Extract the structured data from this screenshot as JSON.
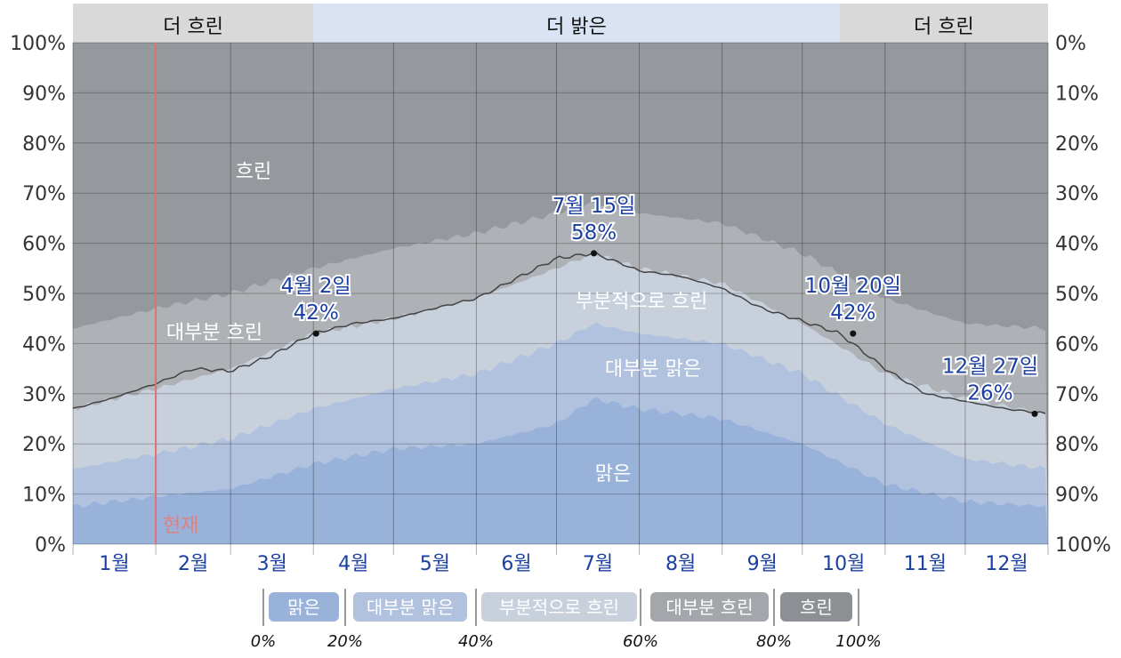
{
  "chart_data": {
    "type": "area",
    "x_unit": "day_of_year",
    "months": [
      "1월",
      "2월",
      "3월",
      "4월",
      "5월",
      "6월",
      "7월",
      "8월",
      "9월",
      "10월",
      "11월",
      "12월"
    ],
    "y_left_ticks": [
      "0%",
      "10%",
      "20%",
      "30%",
      "40%",
      "50%",
      "60%",
      "70%",
      "80%",
      "90%",
      "100%"
    ],
    "y_right_ticks": [
      "100%",
      "90%",
      "80%",
      "70%",
      "60%",
      "50%",
      "40%",
      "30%",
      "20%",
      "10%",
      "0%"
    ],
    "ylim": [
      0,
      100
    ],
    "season_bands": [
      {
        "label": "더 흐린",
        "start_day": 1,
        "end_day": 91,
        "color": "#d9d9d9"
      },
      {
        "label": "더 밝은",
        "start_day": 91,
        "end_day": 288,
        "color": "#d9e3f3"
      },
      {
        "label": "더 흐린",
        "start_day": 288,
        "end_day": 366,
        "color": "#d9d9d9"
      }
    ],
    "area_labels": {
      "clear": "맑은",
      "mostly_clear": "대부분 맑은",
      "partly_cloudy": "부분적으로 흐린",
      "mostly_cloudy": "대부분 흐린",
      "overcast": "흐린"
    },
    "series": [
      {
        "name": "맑은",
        "color": "#98b2da",
        "x": [
          1,
          32,
          60,
          91,
          121,
          152,
          182,
          196,
          213,
          244,
          274,
          305,
          335,
          366
        ],
        "y": [
          7.5,
          9.5,
          11,
          16,
          19,
          20,
          24,
          29,
          27,
          25,
          20,
          12,
          8.5,
          7.5
        ]
      },
      {
        "name": "대부분 맑은",
        "color": "#b1c2df",
        "x": [
          1,
          32,
          60,
          91,
          121,
          152,
          182,
          196,
          213,
          244,
          274,
          305,
          335,
          366
        ],
        "y": [
          15,
          18,
          21,
          27,
          31,
          34,
          40,
          44,
          42,
          40,
          34,
          24,
          17,
          15
        ]
      },
      {
        "name": "부분적으로 흐린",
        "color": "#c8d0dc",
        "x": [
          1,
          32,
          60,
          91,
          121,
          152,
          182,
          196,
          213,
          244,
          274,
          305,
          335,
          366
        ],
        "y": [
          27,
          31,
          35,
          42,
          45,
          49,
          55,
          58,
          55,
          52,
          44,
          34,
          29,
          26
        ]
      },
      {
        "name": "대부분 흐린",
        "color": "#aeb1b5",
        "x": [
          1,
          32,
          60,
          91,
          121,
          152,
          182,
          196,
          213,
          244,
          274,
          305,
          335,
          366
        ],
        "y": [
          43,
          47,
          50,
          55,
          59,
          62,
          66,
          68,
          66,
          64,
          58,
          49,
          44,
          43
        ]
      }
    ],
    "highlight_line": {
      "x": [
        1,
        15,
        32,
        46,
        60,
        75,
        91,
        106,
        121,
        136,
        152,
        167,
        182,
        196,
        206,
        213,
        228,
        244,
        259,
        274,
        288,
        305,
        320,
        335,
        350,
        366
      ],
      "y": [
        27,
        29,
        32,
        35,
        34.5,
        37.5,
        42,
        44,
        45,
        47,
        49,
        53,
        57,
        58,
        56,
        54.5,
        53.5,
        51,
        47,
        44.5,
        42,
        35,
        30,
        28.5,
        27,
        26
      ]
    },
    "annotations": [
      {
        "day": 92,
        "value": 42,
        "date": "4월 2일",
        "pct": "42%"
      },
      {
        "day": 196,
        "value": 58,
        "date": "7월 15일",
        "pct": "58%"
      },
      {
        "day": 293,
        "value": 42,
        "date": "10월 20일",
        "pct": "42%"
      },
      {
        "day": 361,
        "value": 26,
        "date": "12월 27일",
        "pct": "26%"
      }
    ],
    "now": {
      "label": "현재",
      "day": 32
    },
    "legend": {
      "items": [
        {
          "label": "맑은",
          "color": "#98b2da"
        },
        {
          "label": "대부분 맑은",
          "color": "#b1c2df"
        },
        {
          "label": "부분적으로 흐린",
          "color": "#c8d0dc"
        },
        {
          "label": "대부분 흐린",
          "color": "#a3a6aa"
        },
        {
          "label": "흐린",
          "color": "#8c9095"
        }
      ],
      "pct_labels": [
        "0%",
        "20%",
        "40%",
        "60%",
        "80%",
        "100%"
      ]
    },
    "overcast_color": "#95999e"
  }
}
